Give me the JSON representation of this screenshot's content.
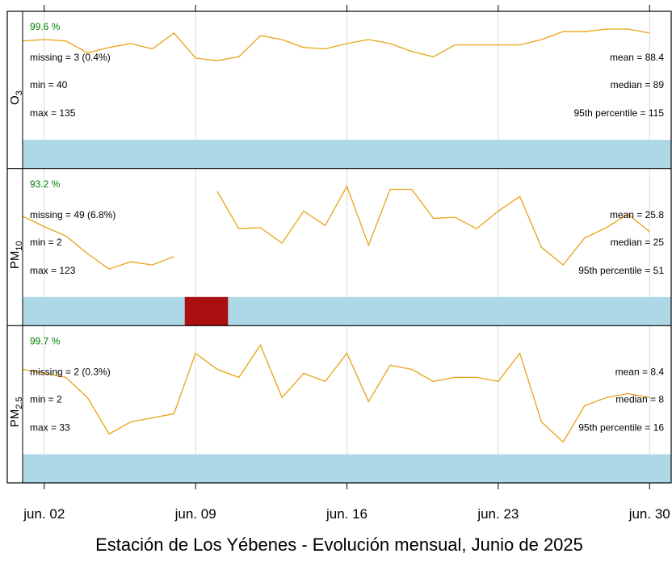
{
  "chart_data": {
    "type": "line",
    "title": "Estación de Los Yébenes - Evolución mensual, Junio de 2025",
    "x": [
      1,
      2,
      3,
      4,
      5,
      6,
      7,
      8,
      9,
      10,
      11,
      12,
      13,
      14,
      15,
      16,
      17,
      18,
      19,
      20,
      21,
      22,
      23,
      24,
      25,
      26,
      27,
      28,
      29,
      30
    ],
    "xlim": [
      1,
      31
    ],
    "xticks": [
      {
        "value": 2,
        "label": "jun. 02"
      },
      {
        "value": 9,
        "label": "jun. 09"
      },
      {
        "value": 16,
        "label": "jun. 16"
      },
      {
        "value": 23,
        "label": "jun. 23"
      },
      {
        "value": 30,
        "label": "jun. 30"
      }
    ],
    "grid": true,
    "color": "#e8a317",
    "panels": [
      {
        "label": "O",
        "label_sub": "3",
        "ylim": [
          40,
          135
        ],
        "values": [
          115,
          116,
          115,
          106,
          110,
          113,
          109,
          121,
          102,
          100,
          103,
          119,
          116,
          110,
          109,
          113,
          116,
          113,
          107,
          103,
          112,
          112,
          112,
          112,
          116,
          122,
          122,
          124,
          124,
          121
        ],
        "stats": {
          "coverage": "99.6 %",
          "missing": "missing = 3 (0.4%)",
          "min": "min = 40",
          "max": "max = 135",
          "mean": "mean = 88.4",
          "median": "median = 89",
          "p95": "95th percentile = 115"
        }
      },
      {
        "label": "PM",
        "label_sub": "10",
        "ylim": [
          2,
          123
        ],
        "values": [
          80,
          70,
          61,
          44,
          29,
          36,
          33,
          41,
          null,
          104,
          68,
          69,
          54,
          85,
          71,
          109,
          52,
          106,
          106,
          78,
          79,
          68,
          85,
          99,
          50,
          33,
          59,
          69,
          82,
          65
        ],
        "missing_ranges": [
          [
            8.5,
            10.5
          ]
        ],
        "stats": {
          "coverage": "93.2 %",
          "missing": "missing = 49 (6.8%)",
          "min": "min = 2",
          "max": "max = 123",
          "mean": "mean = 25.8",
          "median": "median = 25",
          "p95": "95th percentile = 51"
        }
      },
      {
        "label": "PM",
        "label_sub": "2.5",
        "ylim": [
          2,
          33
        ],
        "values": [
          23,
          22,
          21,
          16,
          7,
          10,
          11,
          12,
          27,
          23,
          21,
          29,
          16,
          22,
          20,
          27,
          15,
          24,
          23,
          20,
          21,
          21,
          20,
          27,
          10,
          5,
          14,
          16,
          17,
          16
        ],
        "stats": {
          "coverage": "99.7 %",
          "missing": "missing = 2 (0.3%)",
          "min": "min = 2",
          "max": "max = 33",
          "mean": "mean = 8.4",
          "median": "median = 8",
          "p95": "95th percentile = 16"
        }
      }
    ]
  }
}
